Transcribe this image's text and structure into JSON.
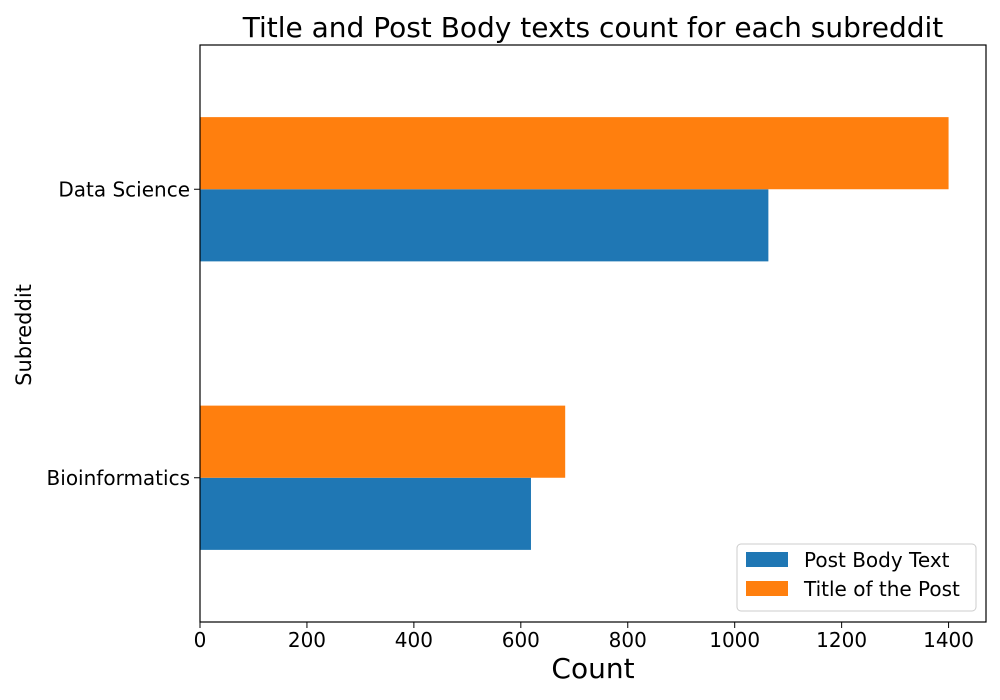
{
  "chart_data": {
    "type": "bar",
    "orientation": "horizontal",
    "title": "Title and Post Body texts count for each subreddit",
    "xlabel": "Count",
    "ylabel": "Subreddit",
    "categories": [
      "Bioinformatics",
      "Data Science"
    ],
    "series": [
      {
        "name": "Post Body Text",
        "color": "#1f77b4",
        "values": [
          619,
          1063
        ]
      },
      {
        "name": "Title of the Post",
        "color": "#ff7f0e",
        "values": [
          683,
          1400
        ]
      }
    ],
    "xlim": [
      0,
      1470
    ],
    "xticks": [
      0,
      200,
      400,
      600,
      800,
      1000,
      1200,
      1400
    ],
    "grid": false,
    "legend_position": "bottom-right"
  }
}
